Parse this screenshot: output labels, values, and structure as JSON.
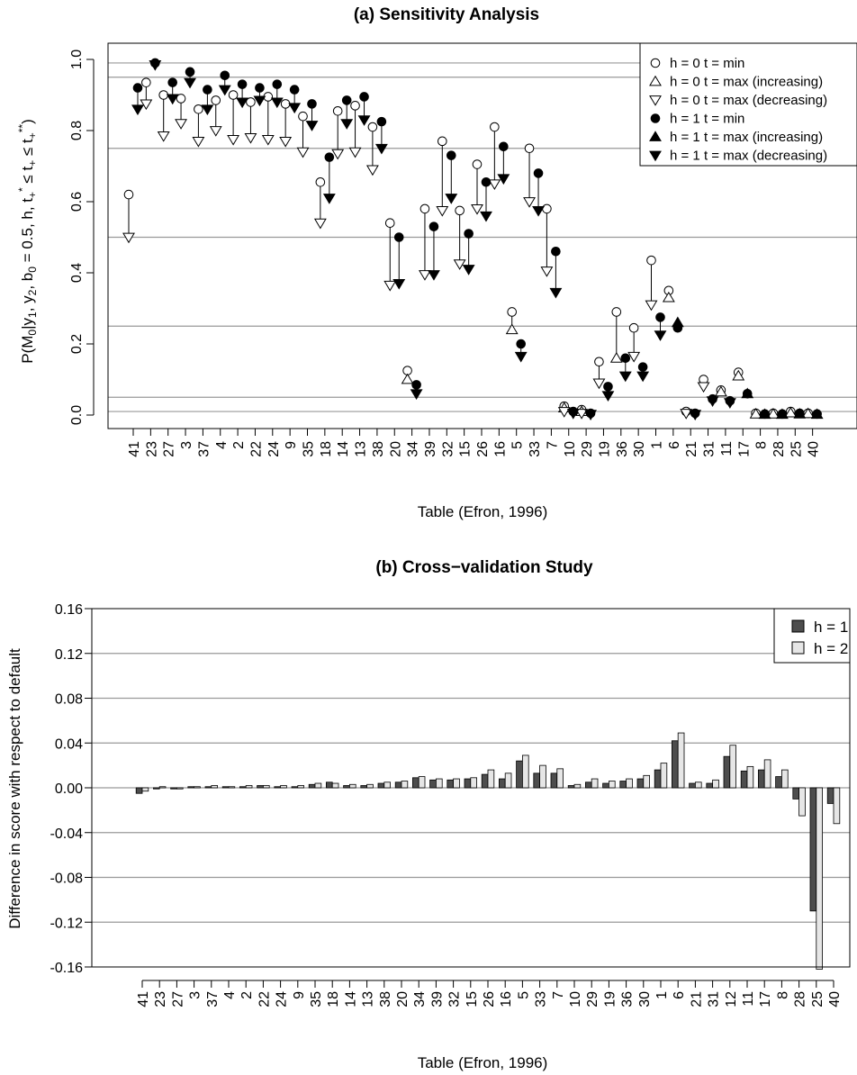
{
  "chart_data": [
    {
      "type": "scatter",
      "title": "(a) Sensitivity Analysis",
      "xlabel": "Table (Efron, 1996)",
      "ylabel": "P(M₀|y₁, y₂, b₀ = 0.5, h, t₊* ≤ t₊ ≤ t₊**)",
      "ylim": [
        0,
        1
      ],
      "yticks": [
        "0.0",
        "0.2",
        "0.4",
        "0.6",
        "0.8",
        "1.0"
      ],
      "hlines": [
        0.01,
        0.05,
        0.25,
        0.5,
        0.75,
        0.95,
        0.99
      ],
      "legend_position": "top-right",
      "categories": [
        "41",
        "23",
        "27",
        "3",
        "37",
        "4",
        "2",
        "22",
        "24",
        "9",
        "35",
        "18",
        "14",
        "13",
        "38",
        "20",
        "34",
        "39",
        "32",
        "15",
        "26",
        "16",
        "5",
        "33",
        "7",
        "10",
        "29",
        "19",
        "36",
        "30",
        "1",
        "6",
        "21",
        "31",
        "11",
        "17",
        "8",
        "28",
        "25",
        "40"
      ],
      "series": [
        {
          "name": "h = 0 t = min",
          "marker": "open-circle",
          "values": [
            0.62,
            0.935,
            0.9,
            0.89,
            0.86,
            0.885,
            0.9,
            0.88,
            0.895,
            0.875,
            0.84,
            0.655,
            0.855,
            0.87,
            0.81,
            0.54,
            0.125,
            0.58,
            0.77,
            0.575,
            0.705,
            0.81,
            0.29,
            0.75,
            0.58,
            0.025,
            0.015,
            0.15,
            0.29,
            0.245,
            0.435,
            0.35,
            0.01,
            0.1,
            0.07,
            0.12,
            0.005,
            0.005,
            0.01,
            0.005
          ]
        },
        {
          "name": "h = 0 t = max (increasing)",
          "marker": "open-triangle-up",
          "values": [
            null,
            null,
            null,
            null,
            null,
            null,
            null,
            null,
            null,
            null,
            null,
            null,
            null,
            null,
            null,
            null,
            0.1,
            null,
            null,
            null,
            null,
            null,
            0.24,
            null,
            null,
            0.02,
            0.01,
            null,
            0.16,
            null,
            null,
            0.33,
            null,
            null,
            0.065,
            0.11,
            0.003,
            0.003,
            0.006,
            0.004
          ]
        },
        {
          "name": "h = 0 t = max (decreasing)",
          "marker": "open-triangle-down",
          "values": [
            0.5,
            0.875,
            0.785,
            0.82,
            0.77,
            0.8,
            0.775,
            0.78,
            0.775,
            0.77,
            0.74,
            0.54,
            0.735,
            0.74,
            0.69,
            0.365,
            null,
            0.395,
            0.575,
            0.425,
            0.58,
            0.65,
            null,
            0.6,
            0.405,
            0.01,
            0.005,
            0.09,
            null,
            0.165,
            0.31,
            null,
            0.005,
            0.08,
            null,
            null,
            null,
            null,
            null,
            null
          ]
        },
        {
          "name": "h = 1 t = min",
          "marker": "filled-circle",
          "values": [
            0.92,
            0.99,
            0.935,
            0.965,
            0.915,
            0.955,
            0.93,
            0.92,
            0.93,
            0.915,
            0.875,
            0.725,
            0.885,
            0.895,
            0.825,
            0.5,
            0.085,
            0.53,
            0.73,
            0.51,
            0.655,
            0.755,
            0.2,
            0.68,
            0.46,
            0.01,
            0.005,
            0.08,
            0.16,
            0.135,
            0.275,
            0.245,
            0.005,
            0.045,
            0.04,
            0.06,
            0.003,
            0.003,
            0.005,
            0.003
          ]
        },
        {
          "name": "h = 1 t = max (increasing)",
          "marker": "filled-triangle-up",
          "values": [
            null,
            null,
            null,
            null,
            null,
            null,
            null,
            null,
            null,
            null,
            null,
            null,
            null,
            null,
            null,
            null,
            null,
            null,
            null,
            null,
            null,
            null,
            null,
            null,
            null,
            null,
            null,
            null,
            null,
            null,
            null,
            0.26,
            null,
            null,
            null,
            0.06,
            0.002,
            0.002,
            0.003,
            0.002
          ]
        },
        {
          "name": "h = 1 t = max (decreasing)",
          "marker": "filled-triangle-down",
          "values": [
            0.86,
            0.985,
            0.89,
            0.935,
            0.86,
            0.915,
            0.88,
            0.885,
            0.88,
            0.865,
            0.815,
            0.61,
            0.82,
            0.83,
            0.75,
            0.37,
            0.06,
            0.395,
            0.61,
            0.41,
            0.56,
            0.665,
            0.165,
            0.575,
            0.345,
            0.005,
            0.002,
            0.055,
            0.11,
            0.11,
            0.225,
            null,
            0.002,
            0.04,
            0.035,
            null,
            null,
            null,
            null,
            null
          ]
        }
      ]
    },
    {
      "type": "bar",
      "title": "(b) Cross−validation Study",
      "xlabel": "Table (Efron, 1996)",
      "ylabel": "Difference in score with respect to default",
      "ylim": [
        -0.16,
        0.16
      ],
      "yticks": [
        "-0.16",
        "-0.12",
        "-0.08",
        "-0.04",
        "0.00",
        "0.04",
        "0.08",
        "0.12",
        "0.16"
      ],
      "legend_position": "top-right",
      "categories": [
        "41",
        "23",
        "27",
        "3",
        "37",
        "4",
        "2",
        "22",
        "24",
        "9",
        "35",
        "18",
        "14",
        "13",
        "38",
        "20",
        "34",
        "39",
        "32",
        "15",
        "26",
        "16",
        "5",
        "33",
        "7",
        "10",
        "29",
        "19",
        "36",
        "30",
        "1",
        "6",
        "21",
        "31",
        "12",
        "11",
        "17",
        "8",
        "28",
        "25",
        "40"
      ],
      "series": [
        {
          "name": "h = 1",
          "color": "#4d4d4d",
          "values": [
            -0.005,
            -0.001,
            -0.001,
            0.001,
            0.001,
            0.001,
            0.001,
            0.002,
            0.001,
            0.001,
            0.003,
            0.005,
            0.002,
            0.002,
            0.004,
            0.005,
            0.009,
            0.007,
            0.007,
            0.008,
            0.012,
            0.008,
            0.024,
            0.013,
            0.013,
            0.002,
            0.005,
            0.004,
            0.006,
            0.008,
            0.016,
            0.042,
            0.004,
            0.004,
            0.028,
            0.015,
            0.016,
            0.01,
            -0.01,
            -0.11,
            -0.014
          ]
        },
        {
          "name": "h = 2",
          "color": "#e6e6e6",
          "values": [
            -0.003,
            0.001,
            -0.001,
            0.001,
            0.002,
            0.001,
            0.002,
            0.002,
            0.002,
            0.002,
            0.004,
            0.004,
            0.003,
            0.003,
            0.005,
            0.006,
            0.01,
            0.008,
            0.008,
            0.009,
            0.016,
            0.013,
            0.029,
            0.02,
            0.017,
            0.003,
            0.008,
            0.006,
            0.008,
            0.011,
            0.022,
            0.049,
            0.005,
            0.007,
            0.038,
            0.019,
            0.025,
            0.016,
            -0.025,
            -0.162,
            -0.032
          ]
        }
      ]
    }
  ]
}
